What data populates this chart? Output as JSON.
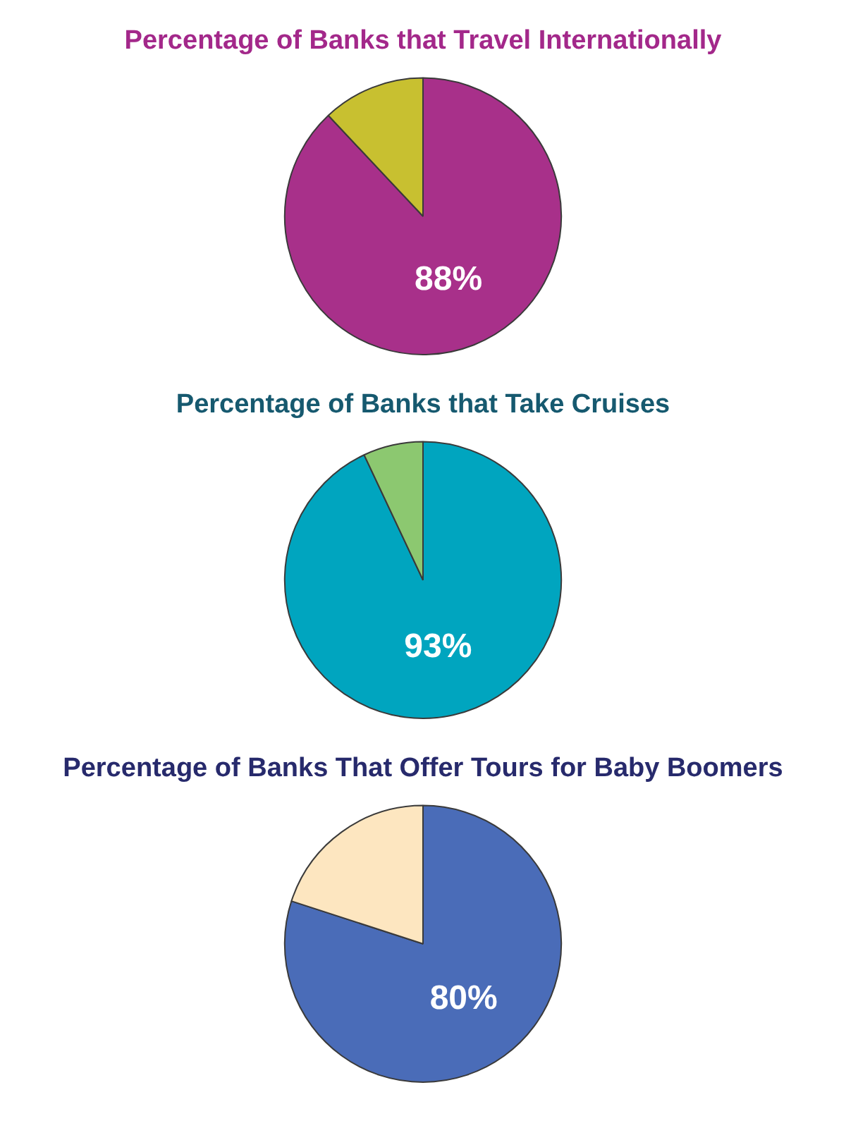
{
  "chart_data": [
    {
      "type": "pie",
      "title": "Percentage of Banks that Travel Internationally",
      "categories": [
        null,
        null
      ],
      "values": [
        88,
        12
      ],
      "colors": [
        "#a8308a",
        "#c8c030"
      ],
      "value_labels": [
        "88%",
        null
      ]
    },
    {
      "type": "pie",
      "title": "Percentage of Banks that Take Cruises",
      "categories": [
        null,
        null
      ],
      "values": [
        93,
        7
      ],
      "colors": [
        "#00a5bf",
        "#8cc870"
      ],
      "value_labels": [
        "93%",
        null
      ]
    },
    {
      "type": "pie",
      "title": "Percentage of Banks That Offer Tours for Baby Boomers",
      "categories": [
        null,
        null
      ],
      "values": [
        80,
        20
      ],
      "colors": [
        "#4a6cb8",
        "#fde6c0"
      ],
      "value_labels": [
        "80%",
        null
      ]
    }
  ]
}
